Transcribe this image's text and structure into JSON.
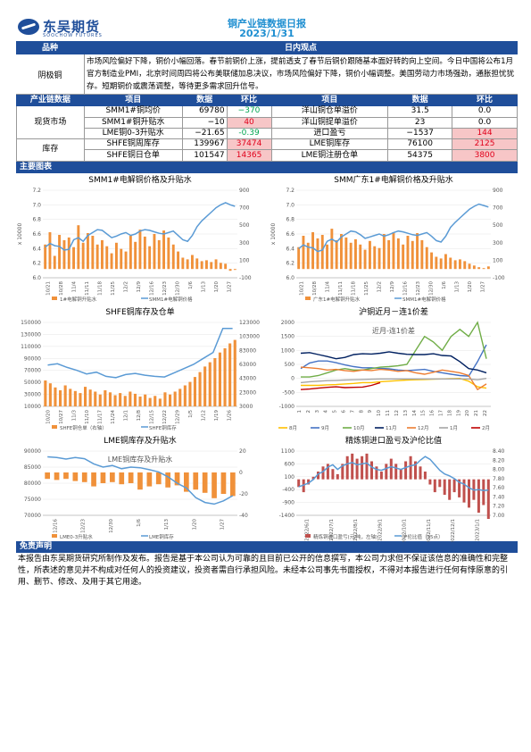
{
  "header": {
    "logo_cn": "东吴期货",
    "logo_en": "SOOCHOW FUTURES",
    "title": "铜产业链数据日报",
    "date": "2023/1/31"
  },
  "summary": {
    "col_left": "品种",
    "col_right": "日内观点",
    "variety": "阴极铜",
    "text": "市场风险偏好下降，铜价小幅回落。春节前铜价上涨，提前透支了春节后铜价跟随基本面好转的向上空间。今日中国将公布1月官方制造业PMI，北京时间周四将公布美联储加息决议，市场风险偏好下降，铜价小幅调整。美国劳动力市场强劲，通胀担忧犹存。短期铜价或震荡调整，等待更多需求回升信号。"
  },
  "table": {
    "headers": [
      "产业链数据",
      "项目",
      "数据",
      "环比",
      "项目",
      "数据",
      "环比"
    ],
    "groups": [
      {
        "name": "现货市场",
        "rows": [
          {
            "l_item": "SMM1#铜均价",
            "l_val": "69780",
            "l_chg": "−370",
            "l_dir": "neg",
            "r_item": "洋山铜仓单溢价",
            "r_val": "31.5",
            "r_chg": "0.0",
            "r_dir": ""
          },
          {
            "l_item": "SMM1#铜升贴水",
            "l_val": "−10",
            "l_chg": "40",
            "l_dir": "pos",
            "r_item": "洋山铜提单溢价",
            "r_val": "23",
            "r_chg": "0.0",
            "r_dir": ""
          },
          {
            "l_item": "LME铜0-3升贴水",
            "l_val": "−21.65",
            "l_chg": "-0.39",
            "l_dir": "neg",
            "r_item": "进口盈亏",
            "r_val": "−1537",
            "r_chg": "144",
            "r_dir": "pos"
          }
        ]
      },
      {
        "name": "库存",
        "rows": [
          {
            "l_item": "SHFE铜周库存",
            "l_val": "139967",
            "l_chg": "37474",
            "l_dir": "pos",
            "r_item": "LME铜库存",
            "r_val": "76100",
            "r_chg": "2125",
            "r_dir": "pos"
          },
          {
            "l_item": "SHFE铜日仓单",
            "l_val": "101547",
            "l_chg": "14365",
            "l_dir": "pos",
            "r_item": "LME铜注册仓单",
            "r_val": "54375",
            "r_chg": "3800",
            "r_dir": "pos"
          }
        ]
      }
    ]
  },
  "charts_bar": "主要图表",
  "colors": {
    "brand": "#1f4e9a",
    "title": "#1f8fd1",
    "bar_orange": "#f0913a",
    "line_blue": "#5b9bd5",
    "neg": "#00a651",
    "pos": "#e0001b"
  },
  "chart_data": [
    {
      "type": "bar",
      "title": "SMM1#电解铜价格及升贴水",
      "ylabel_left": "x 10000",
      "left_ticks": [
        "7.2",
        "7.0",
        "6.8",
        "6.6",
        "6.4",
        "6.2",
        "6.0"
      ],
      "right_ticks": [
        "900",
        "700",
        "500",
        "300",
        "100",
        "-100"
      ],
      "x_ticks": [
        "10/21",
        "10/28",
        "11/4",
        "11/11",
        "11/18",
        "11/25",
        "12/2",
        "12/9",
        "12/16",
        "12/23",
        "12/30",
        "1/6",
        "1/13",
        "1/20",
        "1/27"
      ],
      "series": [
        {
          "name": "1#电解铜升贴水",
          "axis": "right",
          "values": [
            280,
            420,
            150,
            390,
            330,
            360,
            250,
            500,
            300,
            410,
            380,
            280,
            330,
            260,
            180,
            300,
            230,
            200,
            380,
            310,
            450,
            370,
            260,
            400,
            330,
            440,
            360,
            280,
            200,
            130,
            110,
            160,
            120,
            90,
            100,
            80,
            110,
            70,
            60,
            -20,
            -10
          ]
        },
        {
          "name": "SMM1#电解铜价格",
          "axis": "left",
          "values": [
            6.42,
            6.47,
            6.44,
            6.43,
            6.38,
            6.39,
            6.52,
            6.55,
            6.5,
            6.58,
            6.62,
            6.66,
            6.65,
            6.6,
            6.55,
            6.57,
            6.6,
            6.62,
            6.58,
            6.6,
            6.64,
            6.66,
            6.65,
            6.63,
            6.61,
            6.6,
            6.62,
            6.64,
            6.58,
            6.52,
            6.5,
            6.58,
            6.7,
            6.78,
            6.84,
            6.9,
            6.96,
            7.0,
            7.03,
            7.0,
            6.98
          ]
        }
      ]
    },
    {
      "type": "bar",
      "title": "SMM广东1#电解铜价格及升贴水",
      "ylabel_left": "x 10000",
      "left_ticks": [
        "7.2",
        "7.0",
        "6.8",
        "6.6",
        "6.4",
        "6.2",
        "6.0"
      ],
      "right_ticks": [
        "900",
        "700",
        "500",
        "300",
        "100",
        "-100"
      ],
      "x_ticks": [
        "10/21",
        "10/28",
        "11/4",
        "11/11",
        "11/18",
        "11/25",
        "12/2",
        "12/9",
        "12/16",
        "12/23",
        "12/30",
        "1/6",
        "1/13",
        "1/20",
        "1/27"
      ],
      "series": [
        {
          "name": "广东1#电解铜升贴水",
          "axis": "right",
          "values": [
            250,
            380,
            300,
            420,
            350,
            390,
            280,
            460,
            330,
            400,
            360,
            300,
            340,
            280,
            220,
            320,
            260,
            240,
            400,
            330,
            420,
            350,
            280,
            380,
            320,
            410,
            330,
            250,
            190,
            140,
            120,
            170,
            130,
            100,
            110,
            90,
            60,
            40,
            20,
            10,
            30
          ]
        },
        {
          "name": "SMM1#电解铜价格",
          "axis": "left",
          "values": [
            6.4,
            6.45,
            6.42,
            6.41,
            6.36,
            6.38,
            6.5,
            6.53,
            6.49,
            6.56,
            6.6,
            6.64,
            6.63,
            6.59,
            6.54,
            6.56,
            6.58,
            6.6,
            6.57,
            6.59,
            6.62,
            6.64,
            6.63,
            6.61,
            6.59,
            6.58,
            6.6,
            6.62,
            6.57,
            6.51,
            6.49,
            6.57,
            6.69,
            6.76,
            6.82,
            6.88,
            6.94,
            6.98,
            7.01,
            6.99,
            6.97
          ]
        }
      ]
    },
    {
      "type": "bar",
      "title": "SHFE铜库存及仓单",
      "left_ticks": [
        "150000",
        "130000",
        "110000",
        "90000",
        "70000",
        "50000",
        "30000",
        "10000"
      ],
      "right_ticks": [
        "123000",
        "103000",
        "83000",
        "63000",
        "43000",
        "23000",
        "3000"
      ],
      "x_ticks": [
        "10/20",
        "10/27",
        "11/3",
        "11/10",
        "11/17",
        "11/24",
        "12/1",
        "12/8",
        "12/15",
        "12/22",
        "12/29",
        "1/5",
        "1/12",
        "1/19",
        "1/26"
      ],
      "series": [
        {
          "name": "SHFE铜仓单（右轴）",
          "axis": "right",
          "values": [
            40000,
            36000,
            30000,
            26000,
            33000,
            28000,
            25000,
            22000,
            31000,
            27000,
            24000,
            20000,
            26000,
            23000,
            19000,
            22000,
            18000,
            24000,
            21000,
            17000,
            20000,
            15000,
            18000,
            14000,
            23000,
            20000,
            24000,
            28000,
            33000,
            38000,
            45000,
            52000,
            60000,
            66000,
            72000,
            80000,
            86000,
            93000,
            98000
          ]
        },
        {
          "name": "SHFE铜库存",
          "axis": "left",
          "values": [
            79000,
            81000,
            75000,
            70000,
            64000,
            67000,
            60000,
            58000,
            63000,
            65000,
            62000,
            60000,
            59000,
            66000,
            73000,
            80000,
            90000,
            100000,
            140000,
            140000
          ]
        }
      ]
    },
    {
      "type": "line",
      "title": "沪铜近月－连1价差",
      "subtitle": "近月-连1价差",
      "left_ticks": [
        "2000",
        "1500",
        "1000",
        "500",
        "0",
        "-500",
        "-1000"
      ],
      "x_ticks": [
        "1",
        "2",
        "3",
        "4",
        "5",
        "6",
        "7",
        "8",
        "9",
        "10",
        "11",
        "12",
        "13",
        "14",
        "15",
        "16",
        "17",
        "18",
        "19",
        "20",
        "21",
        "22"
      ],
      "ylim": [
        -1000,
        2000
      ],
      "series": [
        {
          "name": "8月",
          "color": "#ffc000",
          "values": [
            -250,
            -250,
            -250,
            -230,
            -220,
            -200,
            -180,
            -150,
            -150,
            -120,
            -100,
            -80,
            -60,
            -50,
            -40,
            -30,
            -20,
            -10,
            0,
            -100,
            -300,
            -350
          ]
        },
        {
          "name": "9月",
          "color": "#4472c4",
          "values": [
            350,
            550,
            620,
            620,
            560,
            480,
            420,
            380,
            380,
            360,
            340,
            300,
            280,
            300,
            320,
            250,
            200,
            150,
            100,
            80,
            600,
            1200
          ]
        },
        {
          "name": "10月",
          "color": "#70ad47",
          "values": [
            50,
            50,
            100,
            200,
            300,
            350,
            300,
            300,
            350,
            400,
            420,
            450,
            500,
            1000,
            1500,
            1300,
            1000,
            1500,
            1750,
            1500,
            2000,
            700
          ]
        },
        {
          "name": "11月",
          "color": "#002060",
          "values": [
            900,
            920,
            850,
            780,
            700,
            750,
            850,
            880,
            870,
            900,
            950,
            900,
            860,
            850,
            850,
            880,
            820,
            800,
            600,
            350,
            300,
            200
          ]
        },
        {
          "name": "12月",
          "color": "#ed7d31",
          "values": [
            400,
            380,
            350,
            300,
            320,
            280,
            250,
            300,
            280,
            320,
            300,
            250,
            280,
            200,
            150,
            220,
            300,
            250,
            200,
            100,
            -400,
            -200
          ]
        },
        {
          "name": "1月",
          "color": "#a5a5a5",
          "values": [
            -150,
            -120,
            -100,
            -80,
            -70,
            -60,
            -50,
            -40,
            -30,
            -20,
            -20,
            -20,
            -20,
            -20,
            -20,
            -20,
            -20,
            -20,
            -20,
            -20,
            -50,
            0
          ]
        },
        {
          "name": "2月",
          "color": "#c00000",
          "values": [
            -400,
            -380,
            -350,
            -320,
            -300,
            -330,
            -320,
            -310,
            -250,
            -150
          ]
        }
      ]
    },
    {
      "type": "bar",
      "title": "LME铜库存及升贴水",
      "subtitle": "LME铜库存及升贴水",
      "left_ticks": [
        "90000",
        "85000",
        "80000",
        "75000",
        "70000"
      ],
      "right_ticks": [
        "20",
        "0",
        "-20",
        "-40"
      ],
      "x_ticks": [
        "12/16",
        "12/23",
        "12/30",
        "1/6",
        "1/13",
        "1/20",
        "1/27"
      ],
      "series": [
        {
          "name": "LME0-3升贴水",
          "axis": "right",
          "values": [
            -6,
            -7,
            -6,
            -8,
            -9,
            -13,
            -10,
            -9,
            -11,
            -10,
            -16,
            -13,
            -11,
            -14,
            -12,
            -18,
            -16,
            -19,
            -24,
            -20,
            -22
          ]
        },
        {
          "name": "LME铜库存",
          "axis": "left",
          "values": [
            88200,
            88000,
            87500,
            88000,
            87600,
            86000,
            85000,
            85500,
            84500,
            85000,
            84800,
            84200,
            83500,
            82000,
            80000,
            78500,
            75500,
            74000,
            73500,
            74500,
            76100
          ]
        }
      ]
    },
    {
      "type": "bar",
      "title": "精炼铜进口盈亏及沪伦比值",
      "left_ticks": [
        "1100",
        "600",
        "100",
        "-400",
        "-900",
        "-1400"
      ],
      "right_ticks": [
        "8.40",
        "8.20",
        "8.00",
        "7.80",
        "7.60",
        "7.40",
        "7.20",
        "7.00"
      ],
      "x_ticks": [
        "2022/6/1",
        "2022/7/1",
        "2022/8/1",
        "2022/9/1",
        "2022/10/1",
        "2022/11/1",
        "2022/12/1",
        "2023/1/1"
      ],
      "series": [
        {
          "name": "精炼铜进口盈亏(元/吨，左轴)",
          "axis": "left",
          "values": [
            -300,
            -500,
            -200,
            100,
            300,
            500,
            600,
            400,
            200,
            600,
            900,
            1000,
            800,
            900,
            1000,
            700,
            500,
            300,
            600,
            800,
            600,
            400,
            700,
            900,
            700,
            500,
            300,
            -200,
            -500,
            -300,
            -600,
            -800,
            -500,
            -700,
            -900,
            -1100,
            -800,
            -1300,
            -1000,
            -1537
          ]
        },
        {
          "name": "沪伦比值（15点）",
          "axis": "right",
          "values": [
            7.62,
            7.66,
            7.7,
            7.78,
            7.9,
            7.95,
            8.05,
            8.1,
            8.0,
            8.08,
            8.12,
            8.15,
            8.1,
            8.12,
            8.14,
            8.05,
            8.0,
            7.98,
            8.02,
            8.06,
            8.03,
            8.0,
            8.04,
            8.08,
            8.1,
            8.2,
            8.28,
            8.22,
            8.1,
            7.98,
            7.9,
            7.86,
            7.8,
            7.72,
            7.68,
            7.6,
            7.55,
            7.56,
            7.54,
            7.55
          ]
        }
      ]
    }
  ],
  "disclaimer": {
    "title": "免责声明",
    "text": "本报告由东吴期货研究所制作及发布。报告是基于本公司认为可靠的且目前已公开的信息撰写，本公司力求但不保证该信息的准确性和完整性，所表述的意见并不构成对任何人的投资建议，投资者需自行承担风险。未经本公司事先书面授权，不得对本报告进行任何有悖原意的引用、删节、修改、及用于其它用途。"
  }
}
